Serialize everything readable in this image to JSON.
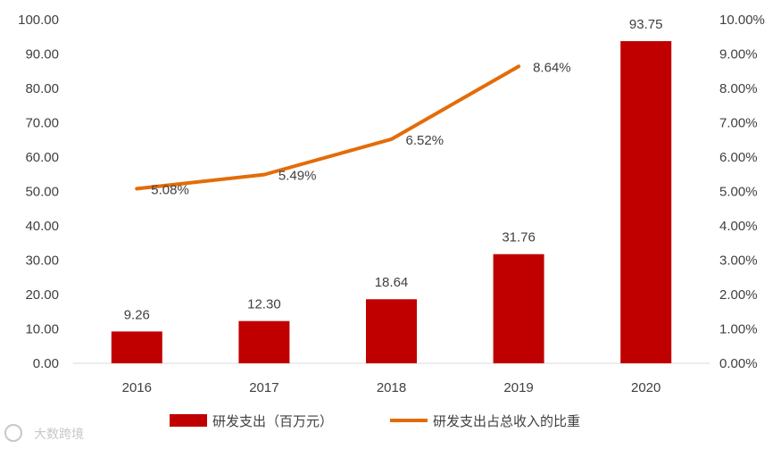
{
  "chart_data": {
    "type": "bar",
    "categories": [
      "2016",
      "2017",
      "2018",
      "2019",
      "2020"
    ],
    "series": [
      {
        "name": "研发支出（百万元）",
        "type": "bar",
        "axis": "left",
        "values": [
          9.26,
          12.3,
          18.64,
          31.76,
          93.75
        ],
        "labels": [
          "9.26",
          "12.30",
          "18.64",
          "31.76",
          "93.75"
        ]
      },
      {
        "name": "研发支出占总收入的比重",
        "type": "line",
        "axis": "right",
        "values": [
          5.08,
          5.49,
          6.52,
          8.64,
          null
        ],
        "labels": [
          "5.08%",
          "5.49%",
          "6.52%",
          "8.64%",
          ""
        ]
      }
    ],
    "ylim_left": [
      0,
      100
    ],
    "ylim_right": [
      0,
      10
    ],
    "yticks_left": [
      "0.00",
      "10.00",
      "20.00",
      "30.00",
      "40.00",
      "50.00",
      "60.00",
      "70.00",
      "80.00",
      "90.00",
      "100.00"
    ],
    "yticks_right": [
      "0.00%",
      "1.00%",
      "2.00%",
      "3.00%",
      "4.00%",
      "5.00%",
      "6.00%",
      "7.00%",
      "8.00%",
      "9.00%",
      "10.00%"
    ],
    "grid": false,
    "legend_position": "bottom",
    "colors": {
      "bar": "#C00000",
      "line": "#E36C09",
      "axis": "#D9D9D9",
      "text": "#404040"
    }
  },
  "watermark": "大数跨境"
}
